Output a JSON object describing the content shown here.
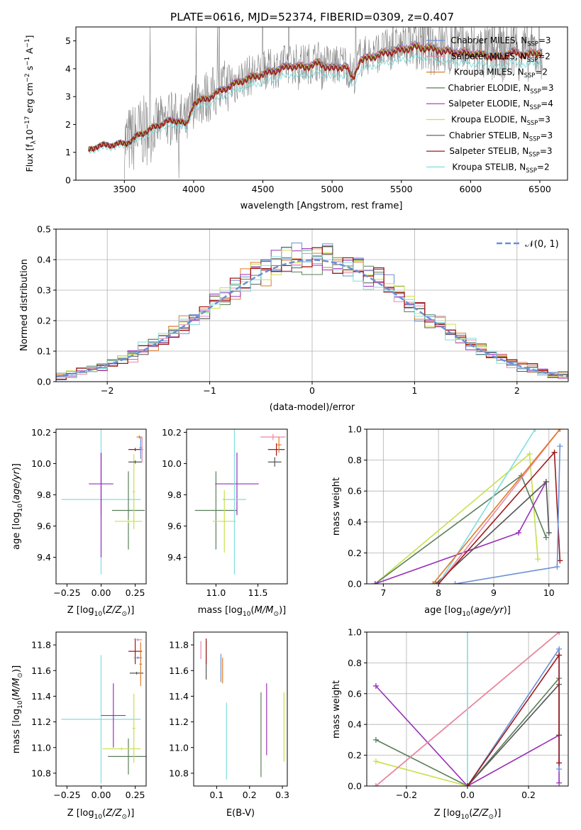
{
  "title": "PLATE=0616, MJD=52374, FIBERID=0309, z=0.407",
  "colors": {
    "chabrier_miles": "#6a8fd6",
    "salpeter_miles": "#e888a8",
    "kroupa_miles": "#e07b28",
    "chabrier_elodie": "#5a7f5a",
    "salpeter_elodie": "#9a30b8",
    "kroupa_elodie": "#c8e04a",
    "chabrier_stelib": "#555555",
    "salpeter_stelib": "#a01818",
    "kroupa_stelib": "#7fdede",
    "data": "#808080"
  },
  "chart_data": [
    {
      "id": "spectrum",
      "type": "line",
      "xlabel": "wavelength [Angstrom, rest frame]",
      "ylabel": "Flux [f_λ 10^-17 erg cm^-2 s^-1 A^-1]",
      "xlim": [
        3150,
        6700
      ],
      "ylim": [
        0,
        5.5
      ],
      "xticks": [
        3500,
        4000,
        4500,
        5000,
        5500,
        6000,
        6500
      ],
      "yticks": [
        0,
        1,
        2,
        3,
        4,
        5
      ],
      "legend_position": "right",
      "model_continuum": {
        "x": [
          3240,
          3300,
          3400,
          3500,
          3550,
          3600,
          3700,
          3800,
          3900,
          3950,
          4000,
          4100,
          4200,
          4300,
          4400,
          4500,
          4600,
          4700,
          4800,
          4900,
          5000,
          5100,
          5150,
          5200,
          5300,
          5400,
          5500,
          5600,
          5700,
          5800,
          5900,
          6000,
          6100,
          6200,
          6300,
          6400,
          6500
        ],
        "y": [
          1.1,
          1.25,
          1.3,
          1.35,
          1.45,
          1.65,
          1.9,
          2.15,
          2.2,
          2.0,
          2.85,
          3.0,
          3.3,
          3.55,
          3.75,
          3.9,
          4.05,
          4.2,
          4.15,
          4.3,
          4.1,
          4.2,
          3.7,
          4.4,
          4.55,
          4.7,
          4.8,
          4.9,
          4.85,
          4.75,
          4.7,
          4.65,
          4.6,
          4.5,
          4.7,
          4.6,
          4.7
        ]
      },
      "legend": [
        {
          "label": "Chabrier MILES, N_SSP=3",
          "key": "chabrier_miles"
        },
        {
          "label": "Salpeter MILES, N_SSP=2",
          "key": "salpeter_miles"
        },
        {
          "label": "Kroupa MILES, N_SSP=2",
          "key": "kroupa_miles"
        },
        {
          "label": "Chabrier ELODIE, N_SSP=3",
          "key": "chabrier_elodie"
        },
        {
          "label": "Salpeter ELODIE, N_SSP=4",
          "key": "salpeter_elodie"
        },
        {
          "label": "Kroupa ELODIE, N_SSP=3",
          "key": "kroupa_elodie"
        },
        {
          "label": "Chabrier STELIB, N_SSP=3",
          "key": "chabrier_stelib"
        },
        {
          "label": "Salpeter STELIB, N_SSP=3",
          "key": "salpeter_stelib"
        },
        {
          "label": "Kroupa STELIB, N_SSP=2",
          "key": "kroupa_stelib"
        }
      ]
    },
    {
      "id": "residuals",
      "type": "histogram",
      "xlabel": "(data-model)/error",
      "ylabel": "Normed distribution",
      "xlim": [
        -2.5,
        2.5
      ],
      "ylim": [
        0,
        0.5
      ],
      "xticks": [
        -2,
        -1,
        0,
        1,
        2
      ],
      "yticks": [
        0.0,
        0.1,
        0.2,
        0.3,
        0.4,
        0.5
      ],
      "grid": true,
      "legend_position": "top-right",
      "reference": {
        "label": "𝒩(0, 1)",
        "mean": 0,
        "sigma": 1,
        "key": "chabrier_miles"
      }
    },
    {
      "id": "age_vs_Z",
      "type": "scatter",
      "xlabel": "Z [log10(Z/Z☉)]",
      "ylabel": "age [log10(age/yr)]",
      "xlim": [
        -0.33,
        0.33
      ],
      "ylim": [
        9.23,
        10.22
      ],
      "xticks": [
        -0.25,
        0.0,
        0.25
      ],
      "yticks": [
        9.4,
        9.6,
        9.8,
        10.0,
        10.2
      ],
      "points": [
        {
          "key": "kroupa_stelib",
          "x": 0.0,
          "xerr": 0.29,
          "y": 9.77,
          "yerr": 0.48
        },
        {
          "key": "salpeter_elodie",
          "x": 0.0,
          "xerr": 0.09,
          "y": 9.87,
          "yerr": 0.2
        },
        {
          "key": "salpeter_elodie",
          "x": 0.0,
          "xerr": 0.001,
          "y": 9.73,
          "yerr": 0.33
        },
        {
          "key": "chabrier_elodie",
          "x": 0.2,
          "xerr": 0.12,
          "y": 9.7,
          "yerr": 0.25
        },
        {
          "key": "kroupa_elodie",
          "x": 0.2,
          "xerr": 0.1,
          "y": 9.63,
          "yerr": 0.01
        },
        {
          "key": "kroupa_elodie",
          "x": 0.24,
          "xerr": 0.01,
          "y": 9.82,
          "yerr": 0.24
        },
        {
          "key": "chabrier_stelib",
          "x": 0.25,
          "xerr": 0.05,
          "y": 10.01,
          "yerr": 0.01
        },
        {
          "key": "salpeter_stelib",
          "x": 0.25,
          "xerr": 0.05,
          "y": 10.09,
          "yerr": 0.01
        },
        {
          "key": "kroupa_miles",
          "x": 0.28,
          "xerr": 0.02,
          "y": 10.17,
          "yerr": 0.01
        },
        {
          "key": "chabrier_miles",
          "x": 0.29,
          "xerr": 0.01,
          "y": 10.1,
          "yerr": 0.07
        },
        {
          "key": "salpeter_miles",
          "x": 0.3,
          "xerr": 0.01,
          "y": 10.09,
          "yerr": 0.08
        }
      ]
    },
    {
      "id": "age_vs_mass",
      "type": "scatter",
      "xlabel": "mass [log10(M/M☉)]",
      "xlim": [
        10.65,
        11.85
      ],
      "ylim": [
        9.23,
        10.22
      ],
      "xticks": [
        11.0,
        11.5
      ],
      "yticks": [
        9.4,
        9.6,
        9.8,
        10.0,
        10.2
      ],
      "points": [
        {
          "key": "chabrier_elodie",
          "x": 11.0,
          "xerr": 0.25,
          "y": 9.7,
          "yerr": 0.25
        },
        {
          "key": "kroupa_elodie",
          "x": 11.1,
          "xerr": 0.14,
          "y": 9.63,
          "yerr": 0.2
        },
        {
          "key": "salpeter_elodie",
          "x": 11.25,
          "xerr": 0.26,
          "y": 9.87,
          "yerr": 0.2
        },
        {
          "key": "kroupa_stelib",
          "x": 11.22,
          "xerr": 0.14,
          "y": 9.77,
          "yerr": 0.48
        },
        {
          "key": "chabrier_stelib",
          "x": 11.7,
          "xerr": 0.08,
          "y": 10.01,
          "yerr": 0.03
        },
        {
          "key": "salpeter_stelib",
          "x": 11.72,
          "xerr": 0.1,
          "y": 10.09,
          "yerr": 0.04
        },
        {
          "key": "salpeter_miles",
          "x": 11.68,
          "xerr": 0.15,
          "y": 10.17,
          "yerr": 0.02
        },
        {
          "key": "kroupa_miles",
          "x": 11.75,
          "xerr": 0.03,
          "y": 10.12,
          "yerr": 0.05
        }
      ]
    },
    {
      "id": "weight_vs_age",
      "type": "line",
      "xlabel": "age [log10(age/yr)]",
      "ylabel": "mass weight",
      "xlim": [
        6.7,
        10.35
      ],
      "ylim": [
        0,
        1
      ],
      "xticks": [
        7,
        8,
        9,
        10
      ],
      "yticks": [
        0.0,
        0.2,
        0.4,
        0.6,
        0.8,
        1.0
      ],
      "grid": true,
      "series": [
        {
          "key": "kroupa_elodie",
          "x": [
            6.85,
            9.65,
            9.8
          ],
          "y": [
            0.0,
            0.84,
            0.16
          ]
        },
        {
          "key": "chabrier_elodie",
          "x": [
            6.85,
            9.5,
            9.95
          ],
          "y": [
            0.0,
            0.7,
            0.3
          ]
        },
        {
          "key": "salpeter_elodie",
          "x": [
            6.85,
            9.45,
            9.95
          ],
          "y": [
            0.0,
            0.33,
            0.66
          ]
        },
        {
          "key": "chabrier_stelib",
          "x": [
            7.95,
            9.95,
            10.0
          ],
          "y": [
            0.0,
            0.66,
            0.33
          ]
        },
        {
          "key": "kroupa_stelib",
          "x": [
            8.0,
            9.75
          ],
          "y": [
            0.0,
            1.0
          ]
        },
        {
          "key": "salpeter_miles",
          "x": [
            8.0,
            10.2
          ],
          "y": [
            0.0,
            1.0
          ]
        },
        {
          "key": "kroupa_miles",
          "x": [
            7.9,
            10.2
          ],
          "y": [
            0.0,
            1.0
          ]
        },
        {
          "key": "salpeter_stelib",
          "x": [
            8.0,
            10.1,
            10.2
          ],
          "y": [
            0.0,
            0.85,
            0.15
          ]
        },
        {
          "key": "chabrier_miles",
          "x": [
            8.3,
            10.15,
            10.2
          ],
          "y": [
            0.0,
            0.11,
            0.89
          ]
        }
      ]
    },
    {
      "id": "mass_vs_Z",
      "type": "scatter",
      "xlabel": "Z [log10(Z/Z☉)]",
      "ylabel": "mass [log10(M/M☉)]",
      "xlim": [
        -0.33,
        0.33
      ],
      "ylim": [
        10.7,
        11.9
      ],
      "xticks": [
        -0.25,
        0.0,
        0.25
      ],
      "yticks": [
        10.8,
        11.0,
        11.2,
        11.4,
        11.6,
        11.8
      ],
      "points": [
        {
          "key": "kroupa_stelib",
          "x": 0.0,
          "xerr": 0.29,
          "y": 11.22,
          "yerr": 0.5
        },
        {
          "key": "salpeter_elodie",
          "x": 0.09,
          "xerr": 0.09,
          "y": 11.25,
          "yerr": 0.25
        },
        {
          "key": "chabrier_elodie",
          "x": 0.2,
          "xerr": 0.15,
          "y": 10.93,
          "yerr": 0.14
        },
        {
          "key": "kroupa_elodie",
          "x": 0.15,
          "xerr": 0.14,
          "y": 10.99,
          "yerr": 0.01
        },
        {
          "key": "kroupa_elodie",
          "x": 0.24,
          "xerr": 0.01,
          "y": 11.15,
          "yerr": 0.27
        },
        {
          "key": "chabrier_stelib",
          "x": 0.26,
          "xerr": 0.05,
          "y": 11.58,
          "yerr": 0.01
        },
        {
          "key": "salpeter_stelib",
          "x": 0.25,
          "xerr": 0.05,
          "y": 11.75,
          "yerr": 0.1
        },
        {
          "key": "salpeter_miles",
          "x": 0.27,
          "xerr": 0.03,
          "y": 11.84,
          "yerr": 0.01
        },
        {
          "key": "kroupa_miles",
          "x": 0.29,
          "xerr": 0.01,
          "y": 11.65,
          "yerr": 0.17
        },
        {
          "key": "chabrier_miles",
          "x": 0.27,
          "xerr": 0.03,
          "y": 11.7,
          "yerr": 0.01
        }
      ]
    },
    {
      "id": "mass_vs_EBV",
      "type": "scatter",
      "xlabel": "E(B-V)",
      "xlim": [
        0.03,
        0.315
      ],
      "ylim": [
        10.7,
        11.9
      ],
      "xticks": [
        0.1,
        0.2,
        0.3
      ],
      "yticks": [
        10.8,
        11.0,
        11.2,
        11.4,
        11.6,
        11.8
      ],
      "points": [
        {
          "key": "salpeter_miles",
          "x": 0.052,
          "y": 11.76,
          "yerr": 0.07
        },
        {
          "key": "chabrier_stelib",
          "x": 0.068,
          "y": 11.68,
          "yerr": 0.15
        },
        {
          "key": "salpeter_stelib",
          "x": 0.068,
          "y": 11.75,
          "yerr": 0.1
        },
        {
          "key": "chabrier_miles",
          "x": 0.113,
          "y": 11.62,
          "yerr": 0.11
        },
        {
          "key": "kroupa_miles",
          "x": 0.118,
          "y": 11.6,
          "yerr": 0.1
        },
        {
          "key": "kroupa_stelib",
          "x": 0.13,
          "y": 11.05,
          "yerr": 0.3
        },
        {
          "key": "chabrier_elodie",
          "x": 0.235,
          "y": 11.1,
          "yerr": 0.33
        },
        {
          "key": "salpeter_elodie",
          "x": 0.252,
          "y": 11.22,
          "yerr": 0.28
        },
        {
          "key": "kroupa_elodie",
          "x": 0.305,
          "y": 11.16,
          "yerr": 0.27
        }
      ]
    },
    {
      "id": "weight_vs_Z",
      "type": "line",
      "xlabel": "Z [log10(Z/Z☉)]",
      "ylabel": "mass weight",
      "xlim": [
        -0.33,
        0.33
      ],
      "ylim": [
        0,
        1
      ],
      "xticks": [
        -0.2,
        0.0,
        0.2
      ],
      "yticks": [
        0.0,
        0.2,
        0.4,
        0.6,
        0.8,
        1.0
      ],
      "grid": true,
      "series": [
        {
          "key": "salpeter_elodie",
          "x": [
            -0.3,
            0.0,
            0.3,
            0.3
          ],
          "y": [
            0.65,
            0.0,
            0.33,
            0.02
          ]
        },
        {
          "key": "chabrier_elodie",
          "x": [
            -0.3,
            0.0,
            0.3
          ],
          "y": [
            0.3,
            0.0,
            0.7
          ]
        },
        {
          "key": "kroupa_elodie",
          "x": [
            -0.3,
            0.0
          ],
          "y": [
            0.16,
            0.0
          ]
        },
        {
          "key": "kroupa_miles",
          "x": [
            -0.3,
            0.3
          ],
          "y": [
            0.0,
            1.0
          ]
        },
        {
          "key": "salpeter_miles",
          "x": [
            -0.3,
            0.3
          ],
          "y": [
            0.0,
            1.0
          ]
        },
        {
          "key": "kroupa_stelib",
          "x": [
            0.0,
            0.0
          ],
          "y": [
            0.0,
            1.0
          ]
        },
        {
          "key": "chabrier_miles",
          "x": [
            0.0,
            0.3,
            0.3
          ],
          "y": [
            0.0,
            0.89,
            0.11
          ]
        },
        {
          "key": "chabrier_stelib",
          "x": [
            0.0,
            0.3,
            0.3
          ],
          "y": [
            0.0,
            0.66,
            0.33
          ]
        },
        {
          "key": "salpeter_stelib",
          "x": [
            0.0,
            0.3,
            0.3
          ],
          "y": [
            0.0,
            0.85,
            0.15
          ]
        }
      ]
    }
  ]
}
